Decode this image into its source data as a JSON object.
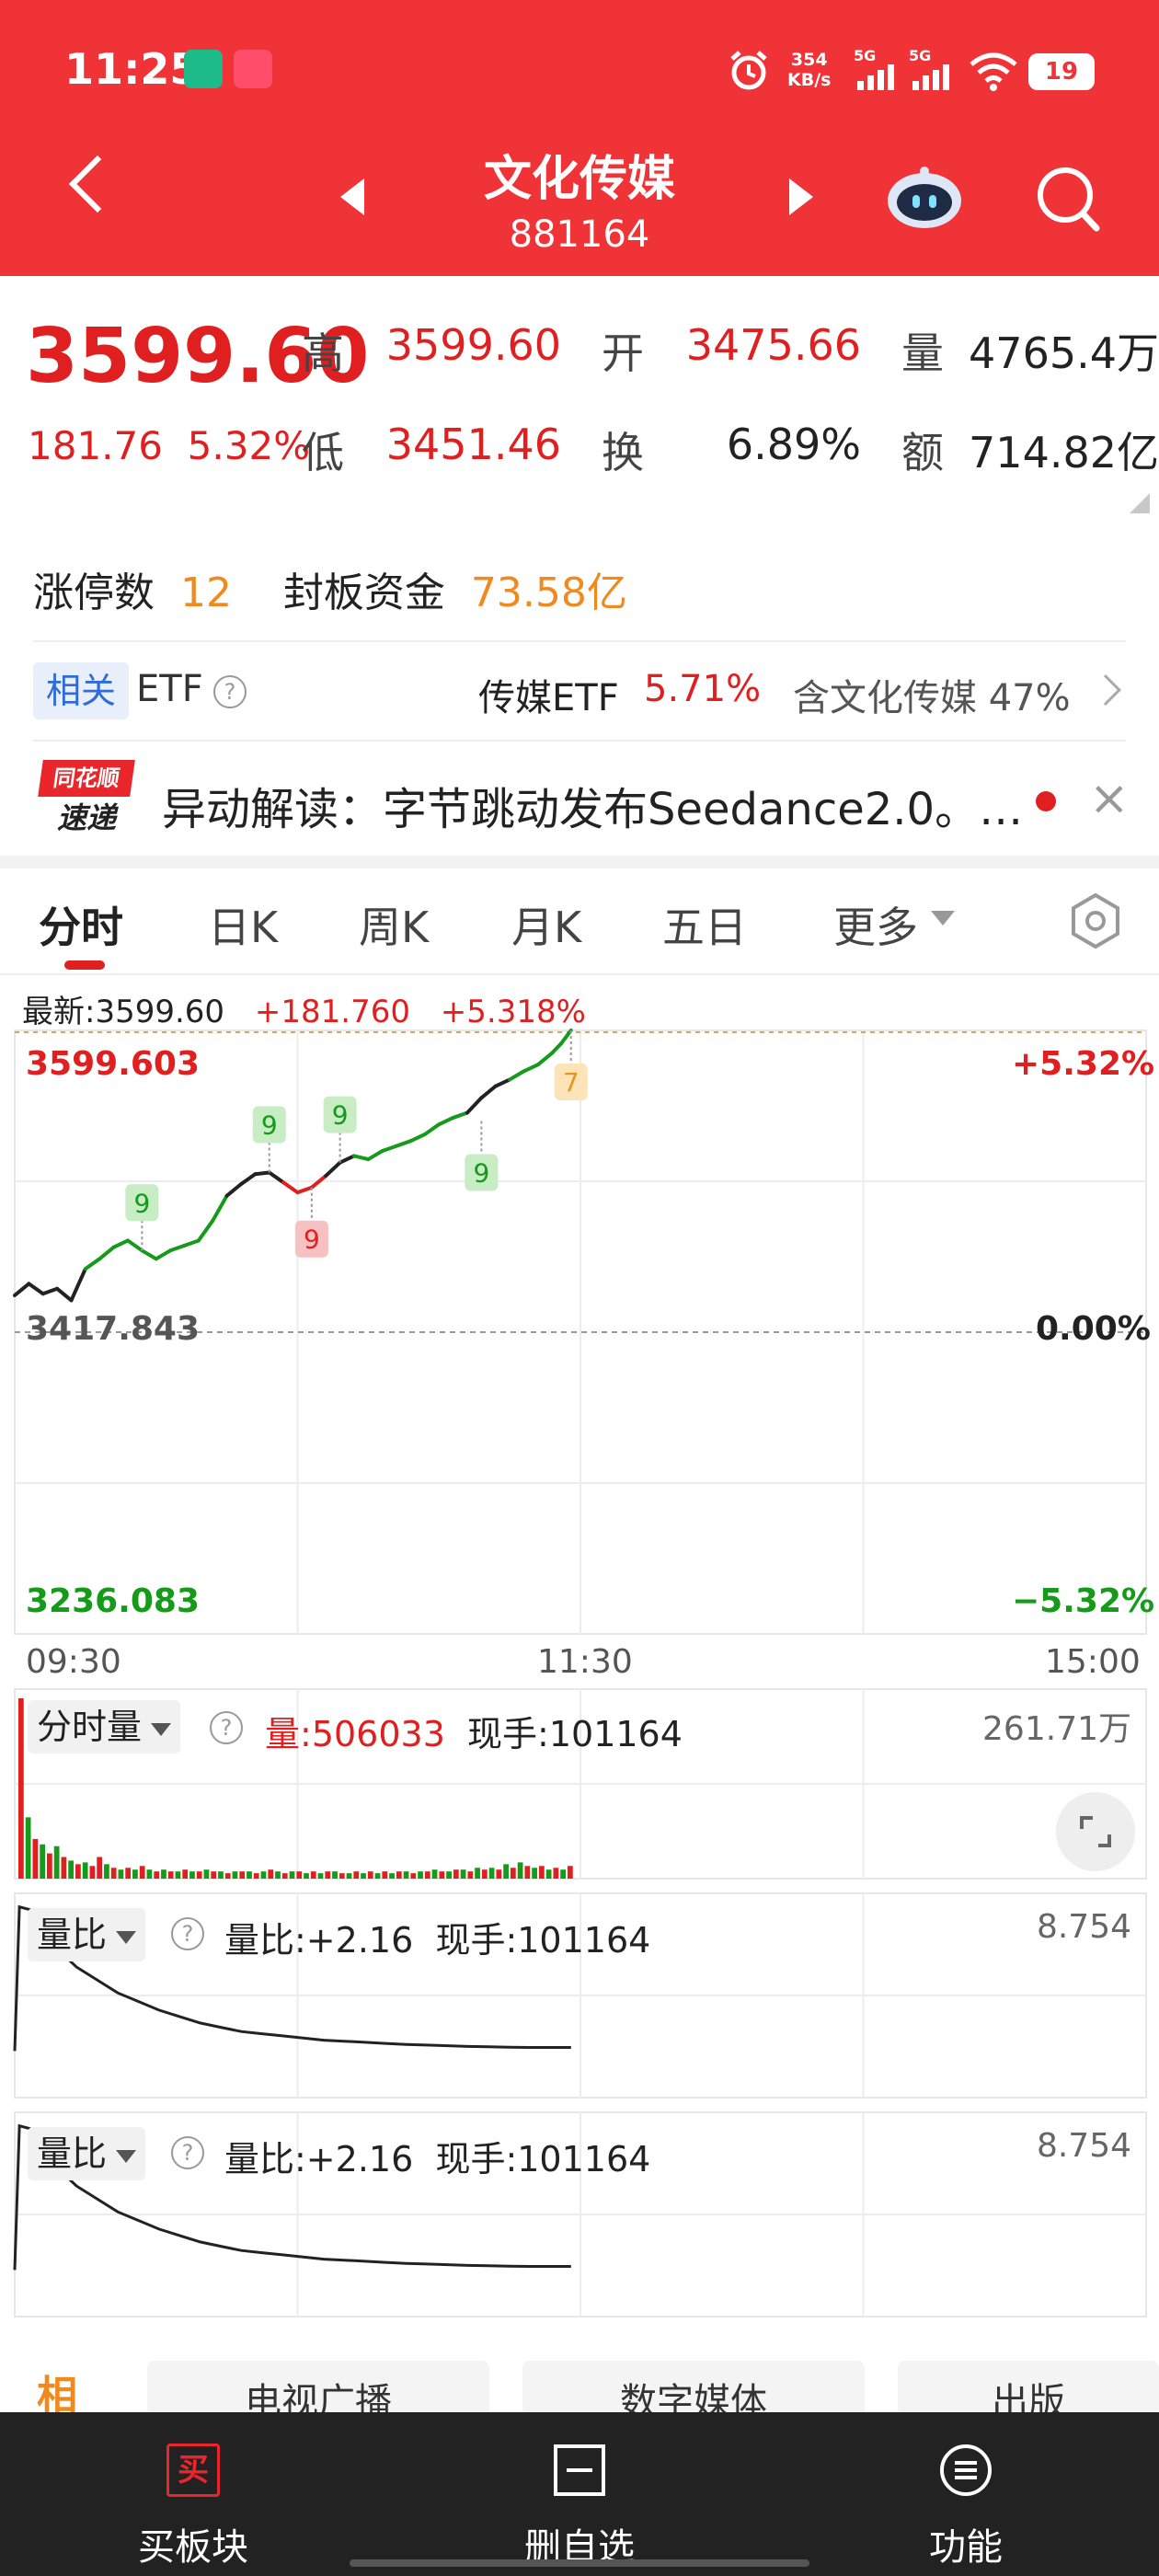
{
  "status_bar": {
    "time": "11:25",
    "app_icon_1": "BOSS直聘",
    "app_icon_2": "app-icon",
    "net_speed_value": "354",
    "net_speed_unit": "KB/s",
    "signal_1": "5G",
    "signal_2": "5G",
    "battery": "19"
  },
  "header": {
    "title": "文化传媒",
    "code": "881164",
    "icons": [
      "back-icon",
      "prev-icon",
      "next-icon",
      "robot-assistant-icon",
      "search-icon"
    ]
  },
  "quote": {
    "price": "3599.60",
    "change": "181.76",
    "change_pct": "5.32%",
    "high_label": "高",
    "high": "3599.60",
    "open_label": "开",
    "open": "3475.66",
    "volume_label": "量",
    "volume": "4765.4万",
    "low_label": "低",
    "low": "3451.46",
    "turnover_label": "换",
    "turnover": "6.89%",
    "amount_label": "额",
    "amount": "714.82亿"
  },
  "limit": {
    "count_label": "涨停数",
    "count": "12",
    "fund_label": "封板资金",
    "fund": "73.58亿"
  },
  "etf": {
    "tag": "相关",
    "label": "ETF",
    "help": "?",
    "name": "传媒ETF",
    "pct": "5.71%",
    "contain": "含文化传媒 47%"
  },
  "news": {
    "logo_top": "同花顺",
    "logo_bottom": "速递",
    "text": "异动解读：字节跳动发布Seedance2.0。…",
    "close": "×"
  },
  "tabs": [
    "分时",
    "日K",
    "周K",
    "月K",
    "五日",
    "更多"
  ],
  "chart_info": {
    "latest": "最新:3599.60",
    "change": "+181.760",
    "change_pct": "+5.318%"
  },
  "chart_data": {
    "type": "line",
    "title": "",
    "x_ticks": [
      "09:30",
      "11:30",
      "15:00"
    ],
    "price_top": "3599.603",
    "price_mid": "3417.843",
    "price_bottom": "3236.083",
    "pct_top": "+5.32%",
    "pct_mid": "0.00%",
    "pct_bottom": "−5.32%",
    "ylim": [
      3236.083,
      3599.603
    ],
    "prev_close": 3417.843,
    "x_minutes": [
      0,
      3,
      6,
      9,
      12,
      15,
      18,
      21,
      24,
      27,
      30,
      33,
      36,
      39,
      42,
      45,
      48,
      51,
      54,
      57,
      60,
      63,
      66,
      69,
      72,
      75,
      78,
      81,
      84,
      87,
      90,
      93,
      96,
      99,
      102,
      105,
      108,
      111,
      114,
      116,
      118
    ],
    "price": [
      3440,
      3447,
      3441,
      3444,
      3437,
      3456,
      3462,
      3469,
      3473,
      3467,
      3462,
      3467,
      3470,
      3473,
      3485,
      3500,
      3507,
      3513,
      3514,
      3508,
      3502,
      3505,
      3512,
      3520,
      3524,
      3522,
      3527,
      3530,
      3533,
      3537,
      3543,
      3547,
      3550,
      3559,
      3566,
      3570,
      3575,
      3579,
      3586,
      3592,
      3599.6
    ],
    "signals": [
      {
        "minute": 27,
        "price": 3467,
        "label": "9",
        "kind": "green-up"
      },
      {
        "minute": 54,
        "price": 3514,
        "label": "9",
        "kind": "green-up"
      },
      {
        "minute": 69,
        "price": 3520,
        "label": "9",
        "kind": "green-up"
      },
      {
        "minute": 63,
        "price": 3505,
        "label": "9",
        "kind": "red-down"
      },
      {
        "minute": 99,
        "price": 3545,
        "label": "9",
        "kind": "green-down"
      },
      {
        "minute": 118,
        "price": 3599.6,
        "label": "7",
        "kind": "orange-down"
      }
    ]
  },
  "volume_panel": {
    "title": "分时量",
    "help": "?",
    "vol_label": "量:",
    "vol_value": "506033",
    "hand": "现手:101164",
    "max": "261.71万",
    "bars": [
      100,
      34,
      22,
      19,
      14,
      18,
      12,
      10,
      8,
      9,
      7,
      12,
      8,
      6,
      5,
      6,
      5,
      7,
      5,
      4,
      5,
      4,
      4,
      5,
      4,
      4,
      5,
      4,
      4,
      3,
      4,
      4,
      4,
      3,
      4,
      5,
      4,
      3,
      4,
      4,
      3,
      4,
      3,
      4,
      4,
      3,
      3,
      4,
      3,
      4,
      3,
      4,
      3,
      4,
      4,
      3,
      4,
      4,
      5,
      4,
      4,
      5,
      5,
      4,
      6,
      5,
      6,
      5,
      8,
      6,
      9,
      7,
      6,
      7,
      5,
      6,
      5,
      7
    ],
    "bar_colors": [
      "r",
      "g",
      "r",
      "g",
      "r",
      "g",
      "r",
      "g",
      "r",
      "g",
      "r",
      "r",
      "g",
      "r",
      "g",
      "r",
      "g",
      "r",
      "g",
      "r",
      "g",
      "r",
      "g",
      "r",
      "g",
      "r",
      "g",
      "r",
      "g",
      "r",
      "g",
      "r",
      "g",
      "r",
      "g",
      "r",
      "g",
      "r",
      "g",
      "r",
      "g",
      "r",
      "g",
      "r",
      "g",
      "r",
      "g",
      "r",
      "g",
      "r",
      "g",
      "r",
      "g",
      "r",
      "g",
      "r",
      "g",
      "r",
      "g",
      "r",
      "g",
      "r",
      "g",
      "r",
      "g",
      "r",
      "g",
      "r",
      "g",
      "r",
      "g",
      "r",
      "g",
      "r",
      "g",
      "r",
      "g",
      "r"
    ]
  },
  "ratio_panel_1": {
    "title": "量比",
    "help": "?",
    "ratio": "量比:+2.16",
    "hand": "现手:101164",
    "max": "8.754",
    "values": [
      2.0,
      8.7,
      8.5,
      6.8,
      5.9,
      5.3,
      4.7,
      4.3,
      3.9,
      3.6,
      3.3,
      3.1,
      2.9,
      2.8,
      2.7,
      2.6,
      2.5,
      2.45,
      2.4,
      2.35,
      2.3,
      2.27,
      2.24,
      2.21,
      2.19,
      2.17,
      2.16,
      2.16,
      2.16
    ]
  },
  "ratio_panel_2": {
    "title": "量比",
    "help": "?",
    "ratio": "量比:+2.16",
    "hand": "现手:101164",
    "max": "8.754",
    "values": [
      2.0,
      8.7,
      8.5,
      6.8,
      5.9,
      5.3,
      4.7,
      4.3,
      3.9,
      3.6,
      3.3,
      3.1,
      2.9,
      2.8,
      2.7,
      2.6,
      2.5,
      2.45,
      2.4,
      2.35,
      2.3,
      2.27,
      2.24,
      2.21,
      2.19,
      2.17,
      2.16,
      2.16,
      2.16
    ]
  },
  "related": {
    "caption": "相",
    "cards": [
      "电视广播",
      "数字媒体",
      "出版"
    ]
  },
  "bottom_nav": {
    "buy_label": "买板块",
    "buy_icon_text": "买",
    "remove_label": "删自选",
    "func_label": "功能"
  },
  "colors": {
    "header_red": "#ef3336",
    "up_red": "#e02020",
    "down_green": "#159a1a",
    "accent_orange": "#f08a1e",
    "nav_bg": "#222222"
  }
}
